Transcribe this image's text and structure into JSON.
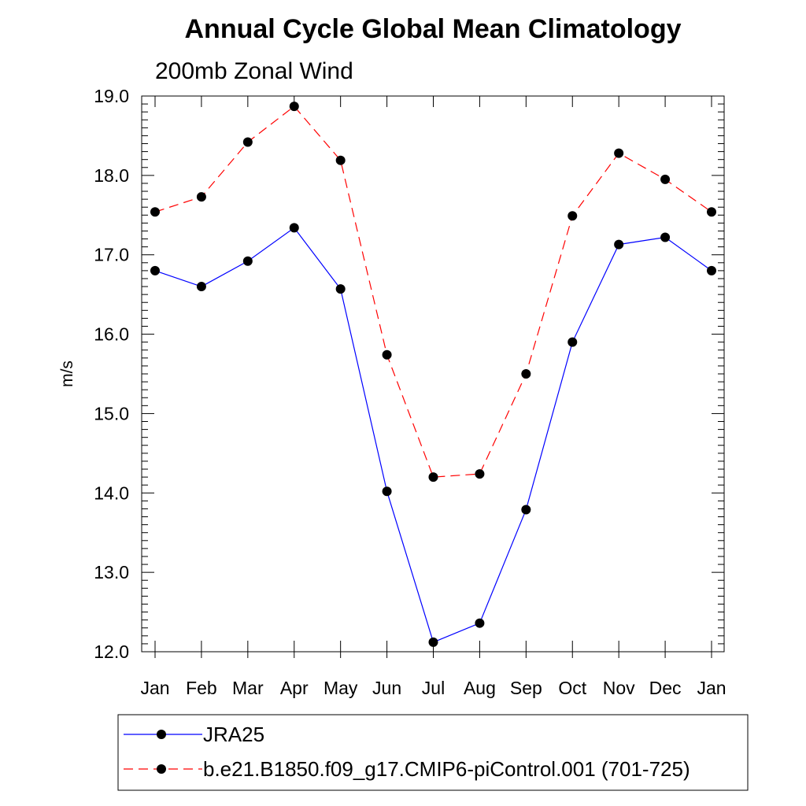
{
  "chart_data": {
    "type": "line",
    "title": "Annual Cycle Global Mean Climatology",
    "subtitle": "200mb Zonal Wind",
    "xlabel": "",
    "ylabel": "m/s",
    "ylim": [
      12.0,
      19.0
    ],
    "yticks": [
      "12.0",
      "13.0",
      "14.0",
      "15.0",
      "16.0",
      "17.0",
      "18.0",
      "19.0"
    ],
    "categories": [
      "Jan",
      "Feb",
      "Mar",
      "Apr",
      "May",
      "Jun",
      "Jul",
      "Aug",
      "Sep",
      "Oct",
      "Nov",
      "Dec",
      "Jan"
    ],
    "series": [
      {
        "name": "JRA25",
        "color": "#0000ff",
        "dash": "solid",
        "values": [
          16.8,
          16.6,
          16.92,
          17.34,
          16.57,
          14.02,
          12.12,
          12.36,
          13.79,
          15.9,
          17.13,
          17.22,
          16.8
        ]
      },
      {
        "name": "b.e21.B1850.f09_g17.CMIP6-piControl.001 (701-725)",
        "color": "#ff0000",
        "dash": "dashed",
        "values": [
          17.54,
          17.73,
          18.42,
          18.87,
          18.19,
          15.74,
          14.2,
          14.24,
          15.5,
          17.49,
          18.28,
          17.95,
          17.54
        ]
      }
    ],
    "legend_position": "bottom"
  }
}
